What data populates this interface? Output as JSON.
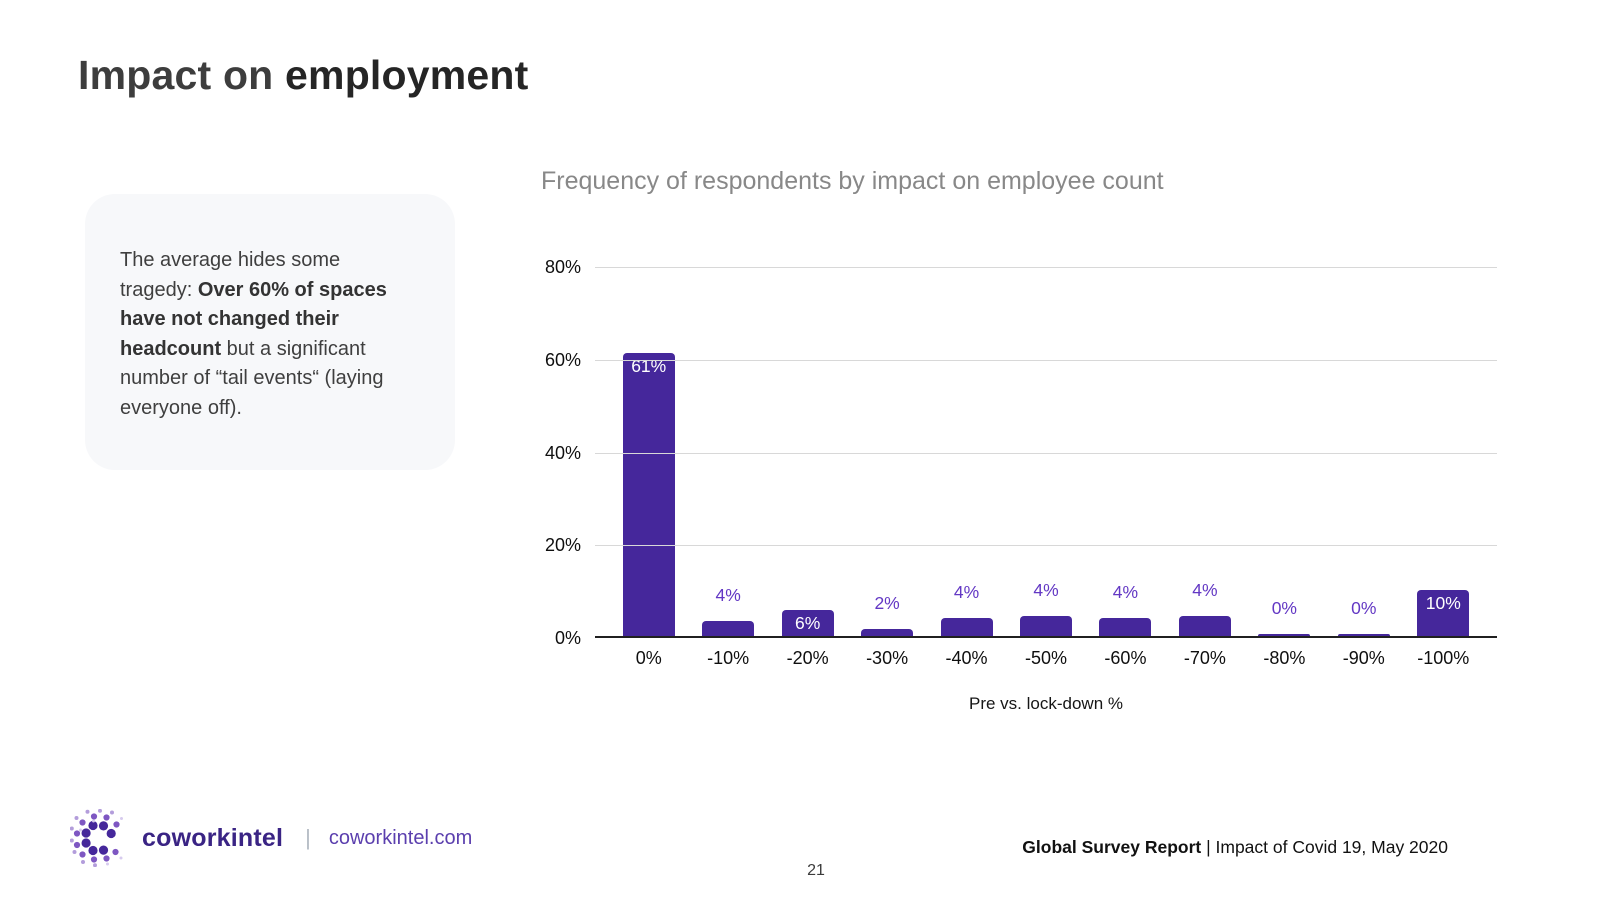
{
  "slide": {
    "title": {
      "prefix": "Impact on ",
      "bold": "employment"
    },
    "note": {
      "text_before": "The average hides some tragedy: ",
      "bold": "Over 60% of spaces have not changed their headcount",
      "text_after": " but a significant number of “tail events“ (laying everyone off)."
    },
    "page_number": "21"
  },
  "chart_data": {
    "type": "bar",
    "title": "Frequency of respondents by impact on employee count",
    "xlabel": "Pre vs. lock-down %",
    "ylabel": "",
    "categories": [
      "0%",
      "-10%",
      "-20%",
      "-30%",
      "-40%",
      "-50%",
      "-60%",
      "-70%",
      "-80%",
      "-90%",
      "-100%"
    ],
    "values": [
      61,
      4,
      6,
      2,
      4,
      4,
      4,
      4,
      0,
      0,
      10
    ],
    "labels": [
      "61%",
      "4%",
      "6%",
      "2%",
      "4%",
      "4%",
      "4%",
      "4%",
      "0%",
      "0%",
      "10%"
    ],
    "label_placement": [
      "inside",
      "above",
      "inside",
      "above",
      "above",
      "above",
      "above",
      "above",
      "above",
      "above",
      "inside"
    ],
    "bar_heights_pct": [
      61,
      3.3,
      5.6,
      1.6,
      3.9,
      4.3,
      3.9,
      4.3,
      0.5,
      0.5,
      10
    ],
    "ylim": [
      0,
      80
    ],
    "yticks": [
      {
        "label": "80%",
        "value": 80
      },
      {
        "label": "60%",
        "value": 60
      },
      {
        "label": "40%",
        "value": 40
      },
      {
        "label": "20%",
        "value": 20
      },
      {
        "label": "0%",
        "value": 0
      }
    ],
    "grid": true,
    "legend": "none",
    "colors": {
      "bar": "#45279b",
      "label_above": "#6338c4",
      "label_inside": "#ffffff",
      "gridline": "#d8d8d8",
      "axis_line": "#202020",
      "title": "#888888"
    }
  },
  "footer": {
    "logo_text": "coworkintel",
    "separator": "|",
    "url": "coworkintel.com",
    "right": {
      "bold": "Global Survey Report",
      "rest": " | Impact of Covid 19, May 2020"
    }
  }
}
